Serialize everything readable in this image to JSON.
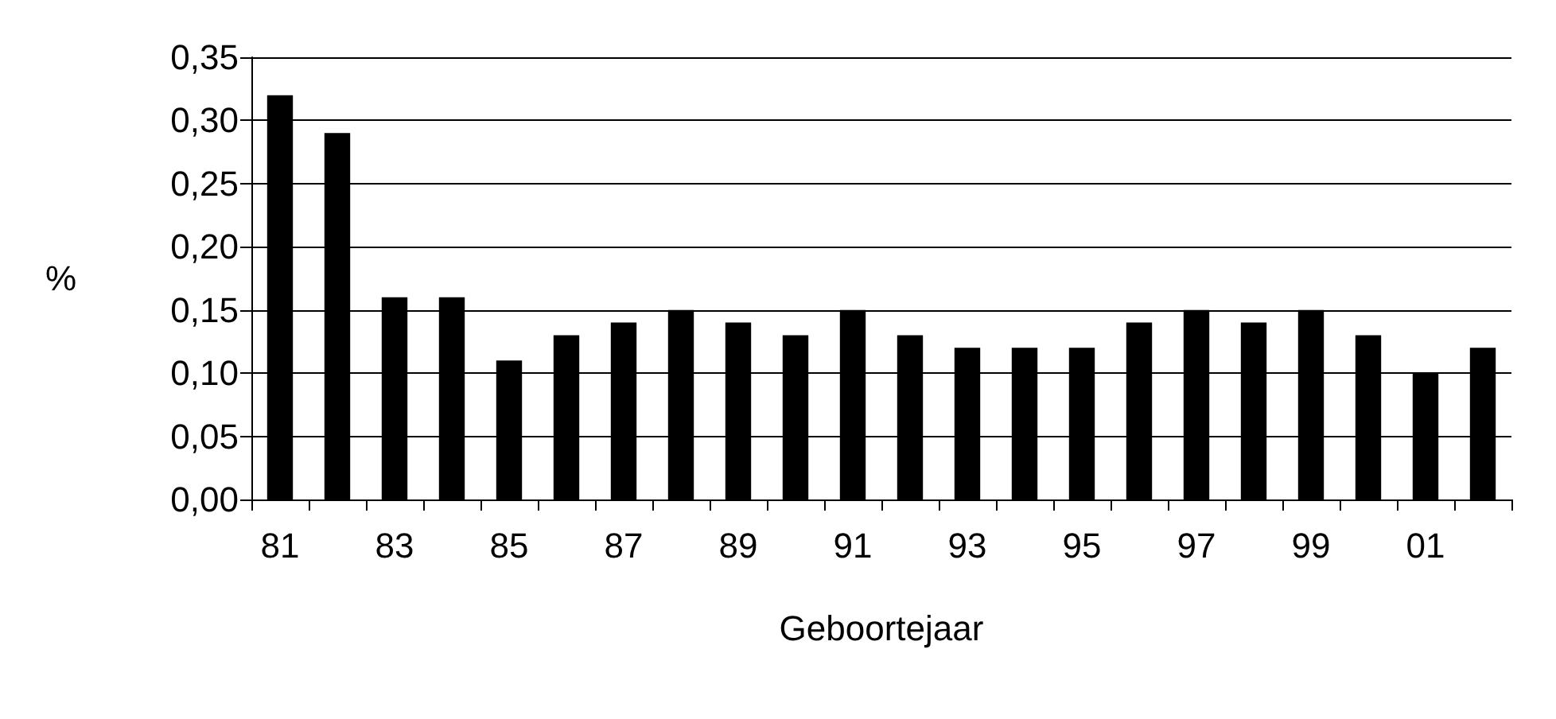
{
  "chart_data": {
    "type": "bar",
    "xlabel": "Geboortejaar",
    "ylabel": "%",
    "categories": [
      "81",
      null,
      "83",
      null,
      "85",
      null,
      "87",
      null,
      "89",
      null,
      "91",
      null,
      "93",
      null,
      "95",
      null,
      "97",
      null,
      "99",
      null,
      "01",
      null
    ],
    "values": [
      0.32,
      0.29,
      0.16,
      0.16,
      0.11,
      0.13,
      0.14,
      0.15,
      0.14,
      0.13,
      0.15,
      0.13,
      0.12,
      0.12,
      0.12,
      0.14,
      0.15,
      0.14,
      0.15,
      0.13,
      0.1,
      0.12
    ],
    "color": "#000000",
    "ylim": [
      0,
      0.35
    ],
    "yticks": [
      {
        "value": 0,
        "label": "0,00"
      },
      {
        "value": 0.05,
        "label": "0,05"
      },
      {
        "value": 0.1,
        "label": "0,10"
      },
      {
        "value": 0.15,
        "label": "0,15"
      },
      {
        "value": 0.2,
        "label": "0,20"
      },
      {
        "value": 0.25,
        "label": "0,25"
      },
      {
        "value": 0.3,
        "label": "0,30"
      },
      {
        "value": 0.35,
        "label": "0,35"
      }
    ],
    "grid": "y"
  }
}
